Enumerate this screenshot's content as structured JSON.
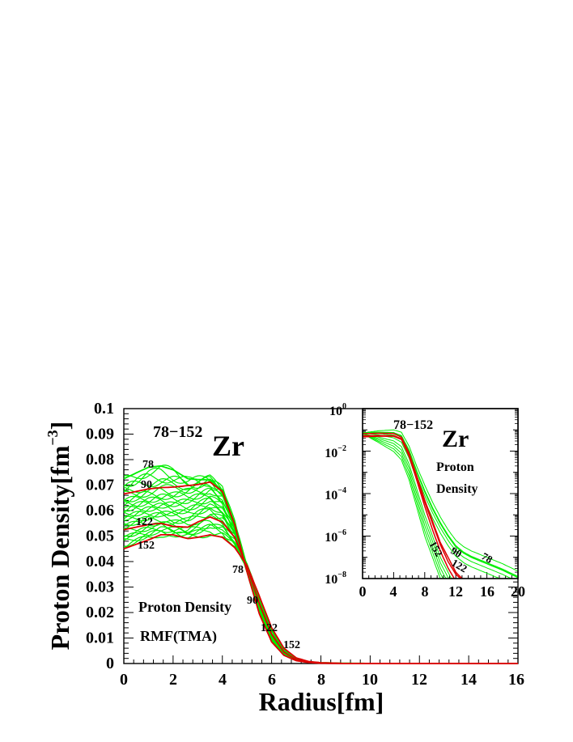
{
  "chart_data": [
    {
      "type": "line",
      "title_prefix": "78−152",
      "title_element": "Zr",
      "xlabel": "Radius[fm]",
      "ylabel_main": "Proton Density[fm",
      "ylabel_exp": "−3",
      "ylabel_close": "]",
      "xlim": [
        0,
        16
      ],
      "ylim": [
        0,
        0.1
      ],
      "xticks": [
        "0",
        "2",
        "4",
        "6",
        "8",
        "10",
        "12",
        "14",
        "16"
      ],
      "yticks": [
        "0",
        "0.01",
        "0.02",
        "0.03",
        "0.04",
        "0.05",
        "0.06",
        "0.07",
        "0.08",
        "0.09",
        "0.1"
      ],
      "annotations": {
        "label_line1": "Proton Density",
        "label_line2": "RMF(TMA)",
        "mass_labels": [
          "78",
          "90",
          "122",
          "152",
          "78",
          "90",
          "122",
          "152"
        ]
      },
      "series": [
        {
          "name": "A=78",
          "color": "#00ee00",
          "x": [
            0,
            1,
            1.5,
            2,
            2.6,
            3,
            3.5,
            4,
            4.5,
            5,
            5.5,
            6,
            6.5,
            7,
            7.5,
            8,
            9,
            10,
            12,
            16
          ],
          "y": [
            0.0725,
            0.077,
            0.0775,
            0.076,
            0.0725,
            0.0722,
            0.072,
            0.068,
            0.055,
            0.038,
            0.022,
            0.011,
            0.0045,
            0.0018,
            0.0007,
            0.0003,
            0.0001,
            3e-05,
            0,
            0
          ]
        },
        {
          "name": "A=90",
          "color": "#dd0000",
          "x": [
            0,
            1,
            1.5,
            2,
            2.6,
            3,
            3.5,
            4,
            4.5,
            5,
            5.5,
            6,
            6.5,
            7,
            7.5,
            8,
            9,
            10,
            12,
            16
          ],
          "y": [
            0.0665,
            0.0685,
            0.069,
            0.0692,
            0.0698,
            0.0702,
            0.0712,
            0.0675,
            0.0545,
            0.036,
            0.0195,
            0.0085,
            0.0032,
            0.0011,
            0.0004,
            0.0001,
            0,
            0,
            0,
            0
          ]
        },
        {
          "name": "A=122",
          "color": "#dd0000",
          "x": [
            0,
            1,
            1.5,
            2,
            2.6,
            3,
            3.5,
            4,
            4.5,
            5,
            5.5,
            6,
            6.5,
            7,
            7.5,
            8,
            9,
            10,
            12,
            16
          ],
          "y": [
            0.0525,
            0.0545,
            0.055,
            0.0538,
            0.0535,
            0.0555,
            0.0575,
            0.0555,
            0.0495,
            0.038,
            0.0235,
            0.0115,
            0.0045,
            0.0015,
            0.0005,
            0.0002,
            0,
            0,
            0,
            0
          ]
        },
        {
          "name": "A=152",
          "color": "#dd0000",
          "x": [
            0,
            1,
            1.5,
            2,
            2.6,
            3,
            3.5,
            4,
            4.5,
            5,
            5.5,
            6,
            6.5,
            7,
            7.5,
            8,
            9,
            10,
            12,
            16
          ],
          "y": [
            0.045,
            0.0485,
            0.0505,
            0.0505,
            0.049,
            0.0495,
            0.0505,
            0.0495,
            0.0455,
            0.0385,
            0.0265,
            0.014,
            0.006,
            0.0022,
            0.0008,
            0.0003,
            0,
            0,
            0,
            0
          ]
        }
      ]
    },
    {
      "type": "line",
      "yscale": "log",
      "title_prefix": "78−152",
      "title_element": "Zr",
      "xlim": [
        0,
        20
      ],
      "ylim_exp": [
        -8,
        0
      ],
      "xticks": [
        "0",
        "4",
        "8",
        "12",
        "16",
        "20"
      ],
      "ytick_base": "10",
      "ytick_exponents": [
        "0",
        "−2",
        "−4",
        "−6",
        "−8"
      ],
      "annotations": {
        "label_line1": "Proton",
        "label_line2": "Density",
        "mass_labels": [
          "152",
          "90",
          "122",
          "78"
        ]
      },
      "series": [
        {
          "name": "A=78",
          "color": "#00ee00",
          "x": [
            0,
            2,
            4,
            5,
            6,
            7,
            8,
            9,
            10,
            11,
            12,
            13,
            14,
            16,
            18,
            20
          ],
          "log10y": [
            -1.14,
            -1.12,
            -1.15,
            -1.3,
            -2.0,
            -3.0,
            -3.9,
            -4.7,
            -5.4,
            -6.0,
            -6.5,
            -6.8,
            -7.0,
            -7.3,
            -7.6,
            -7.95
          ]
        },
        {
          "name": "A=90",
          "color": "#dd0000",
          "x": [
            0,
            2,
            4,
            5,
            6,
            7,
            8,
            9,
            10,
            11,
            12,
            12.8
          ],
          "log10y": [
            -1.18,
            -1.16,
            -1.17,
            -1.35,
            -2.1,
            -3.2,
            -4.3,
            -5.3,
            -6.3,
            -7.0,
            -7.7,
            -8.0
          ]
        },
        {
          "name": "A=122",
          "color": "#dd0000",
          "x": [
            0,
            2,
            4,
            5,
            6,
            7,
            8,
            9,
            10,
            11,
            12,
            12.6
          ],
          "log10y": [
            -1.28,
            -1.27,
            -1.28,
            -1.42,
            -2.2,
            -3.3,
            -4.4,
            -5.4,
            -6.4,
            -7.2,
            -7.8,
            -8.0
          ]
        },
        {
          "name": "A=152",
          "color": "#dd0000",
          "x": [
            0,
            2,
            4,
            5,
            6,
            7,
            8,
            9,
            10,
            11,
            11.8
          ],
          "log10y": [
            -1.33,
            -1.3,
            -1.3,
            -1.45,
            -2.25,
            -3.4,
            -4.6,
            -5.7,
            -6.7,
            -7.5,
            -8.0
          ]
        }
      ]
    }
  ]
}
